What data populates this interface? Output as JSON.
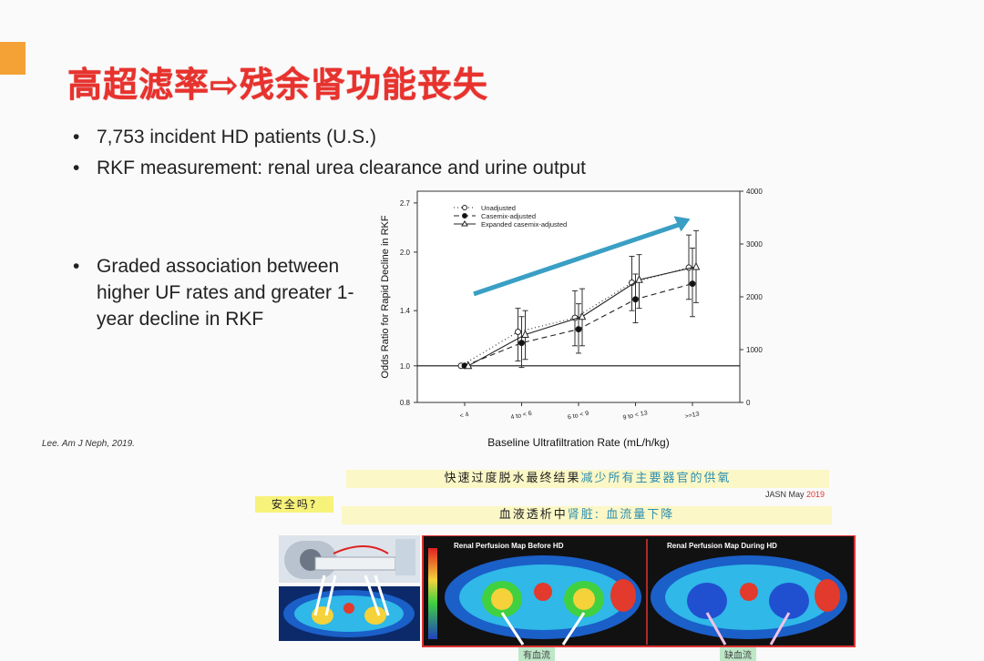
{
  "slide": {
    "title": "高超滤率⇨残余肾功能丧失",
    "bullets": [
      "7,753 incident HD patients (U.S.)",
      "RKF measurement: renal urea clearance and urine output"
    ],
    "bullet3": "Graded association between higher UF rates and greater 1-year decline in RKF",
    "citation": "Lee. Am J Neph, 2019."
  },
  "captions": {
    "line1_a": "快速过度脱水最终结果",
    "line1_b": "减少所有主要器官的供氧",
    "jasn": "JASN May ",
    "jasn_year": "2019",
    "safe": "安全吗?",
    "line2_a": "血液透析中",
    "line2_b": "肾脏: 血流量下降",
    "panel_before": "Renal Perfusion Map Before HD",
    "panel_during": "Renal Perfusion Map During HD",
    "label_left": "有血流",
    "label_right": "缺血流",
    "colors": {
      "caption_bg": "#fbf7c6",
      "safe_bg": "#f7f27a",
      "highlight": "#2f8fb0"
    }
  },
  "chart_data": {
    "type": "line",
    "ylabel": "Odds Ratio for Rapid Decline in RKF",
    "xlabel": "Baseline Ultrafiltration Rate (mL/h/kg)",
    "categories": [
      "< 4",
      "4 to < 6",
      "6 to < 9",
      "9 to < 13",
      ">=13"
    ],
    "y_ticks": [
      "0.8",
      "1.0",
      "1.4",
      "2.0",
      "2.7"
    ],
    "y_tick_values": [
      0.8,
      1.0,
      1.4,
      2.0,
      2.7
    ],
    "ylim": [
      0.8,
      2.9
    ],
    "y_scale": "log",
    "y2_ticks": [
      "0",
      "1000",
      "2000",
      "3000",
      "4000"
    ],
    "y2lim": [
      0,
      4000
    ],
    "reference_line": 1.0,
    "series": [
      {
        "name": "Unadjusted",
        "marker": "open-circle",
        "dash": "1,3",
        "values": [
          1.0,
          1.23,
          1.34,
          1.66,
          1.82
        ],
        "low": [
          1.0,
          1.03,
          1.13,
          1.4,
          1.5
        ],
        "high": [
          1.0,
          1.42,
          1.58,
          1.95,
          2.22
        ]
      },
      {
        "name": "Casemix-adjusted",
        "marker": "filled-circle",
        "dash": "6,4",
        "values": [
          1.0,
          1.15,
          1.25,
          1.5,
          1.65
        ],
        "low": [
          1.0,
          0.99,
          1.08,
          1.3,
          1.35
        ],
        "high": [
          1.0,
          1.35,
          1.46,
          1.75,
          2.05
        ]
      },
      {
        "name": "Expanded casemix-adjusted",
        "marker": "open-triangle",
        "dash": "",
        "values": [
          1.0,
          1.21,
          1.35,
          1.69,
          1.83
        ],
        "low": [
          1.0,
          1.04,
          1.13,
          1.42,
          1.47
        ],
        "high": [
          1.0,
          1.4,
          1.6,
          1.97,
          2.28
        ]
      }
    ],
    "legend": "top-left",
    "annotation": "upward trend arrow",
    "arrow_color": "#3a9fc4"
  }
}
